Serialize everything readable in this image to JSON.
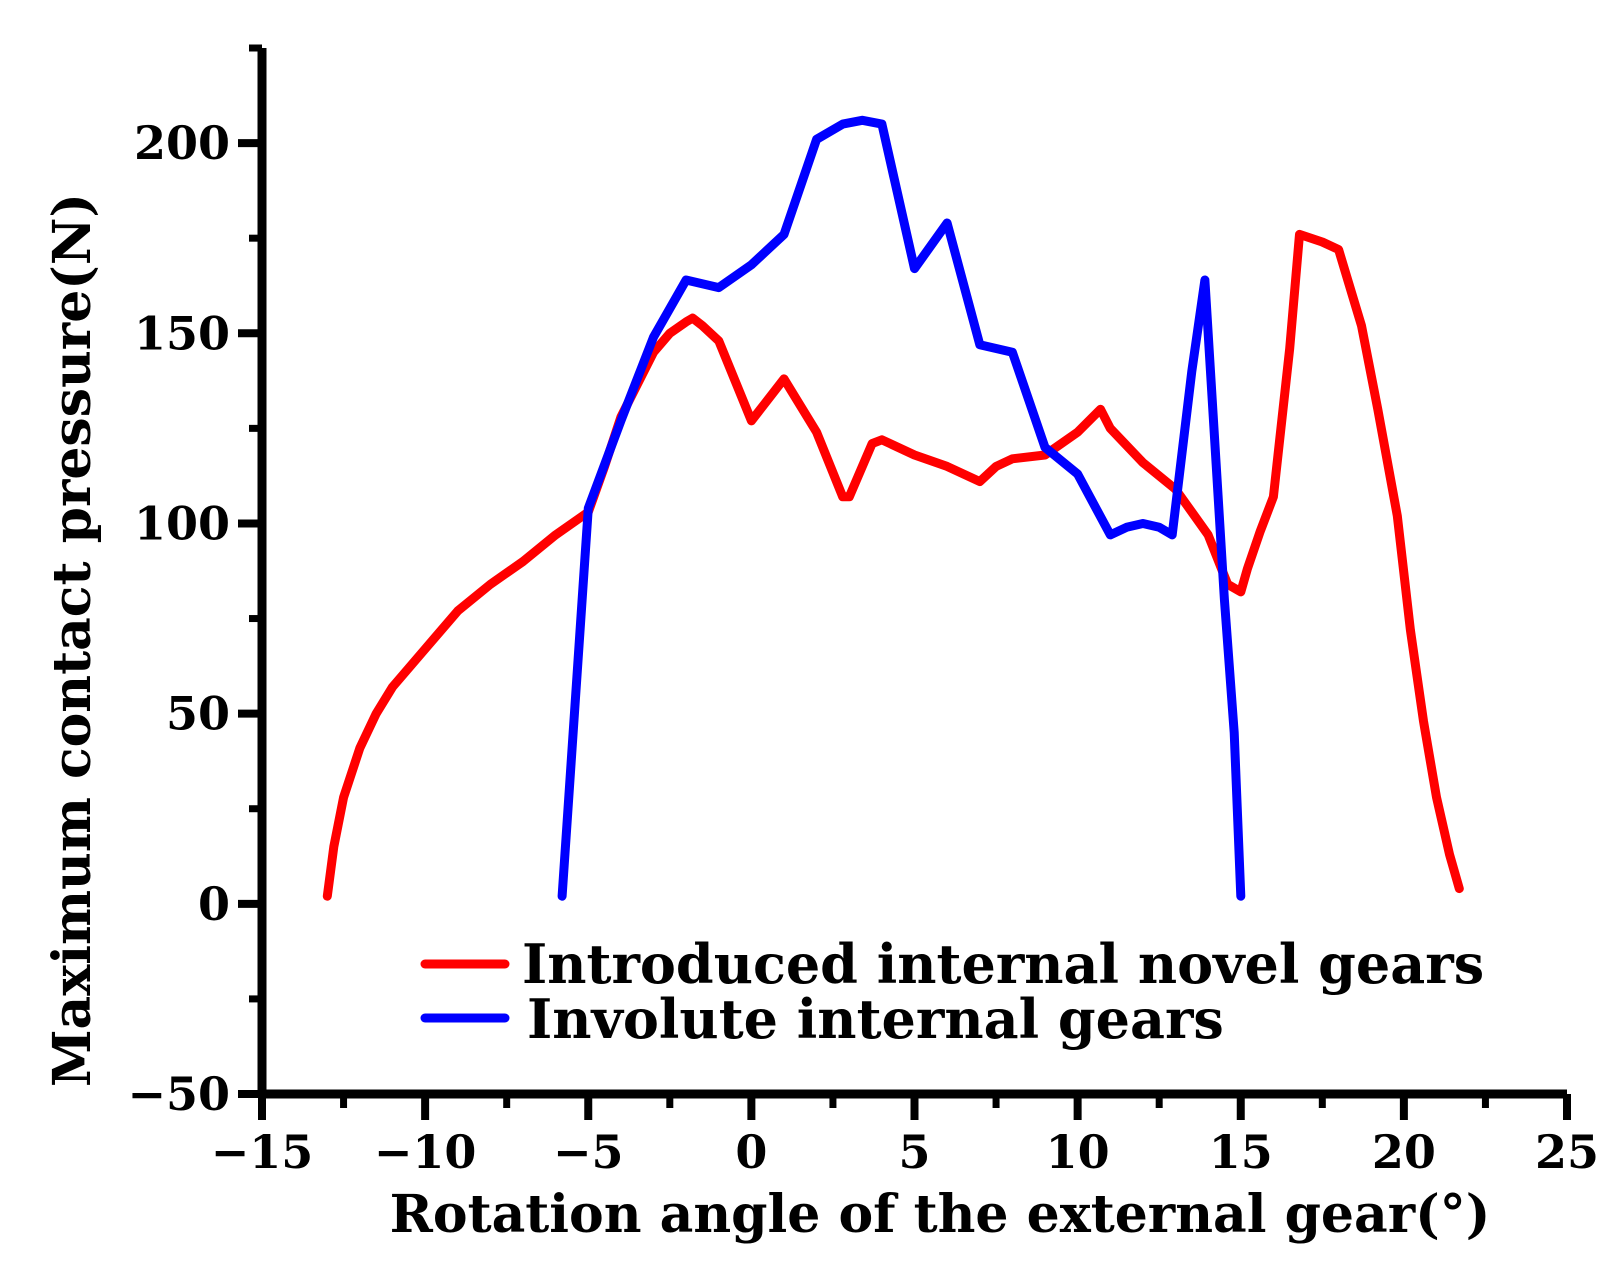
{
  "chart_data": {
    "type": "line",
    "xlabel": "Rotation angle of the external gear(°)",
    "ylabel": "Maximum contact pressure(N)",
    "xlim": [
      -15,
      25
    ],
    "ylim": [
      -50,
      225
    ],
    "x_ticks": [
      -15,
      -10,
      -5,
      0,
      5,
      10,
      15,
      20,
      25
    ],
    "x_tick_labels": [
      "−15",
      "−10",
      "−5",
      "0",
      "5",
      "10",
      "15",
      "20",
      "25"
    ],
    "y_ticks": [
      -50,
      0,
      50,
      100,
      150,
      200
    ],
    "y_tick_labels": [
      "−50",
      "0",
      "50",
      "100",
      "150",
      "200"
    ],
    "grid": false,
    "legend_position": "bottom-center",
    "series": [
      {
        "name": "Introduced internal novel gears",
        "color": "#ff0000",
        "points": [
          [
            -13.0,
            2
          ],
          [
            -12.8,
            15
          ],
          [
            -12.5,
            28
          ],
          [
            -12.0,
            41
          ],
          [
            -11.5,
            50
          ],
          [
            -11.0,
            57
          ],
          [
            -10.0,
            67
          ],
          [
            -9.0,
            77
          ],
          [
            -8.0,
            84
          ],
          [
            -7.0,
            90
          ],
          [
            -6.0,
            97
          ],
          [
            -5.0,
            103
          ],
          [
            -4.5,
            115
          ],
          [
            -4.0,
            128
          ],
          [
            -3.0,
            145
          ],
          [
            -2.5,
            150
          ],
          [
            -2.0,
            153
          ],
          [
            -1.8,
            154
          ],
          [
            -1.5,
            152
          ],
          [
            -1.0,
            148
          ],
          [
            0.0,
            127
          ],
          [
            1.0,
            138
          ],
          [
            2.0,
            124
          ],
          [
            2.8,
            107
          ],
          [
            3.0,
            107
          ],
          [
            3.7,
            121
          ],
          [
            4.0,
            122
          ],
          [
            5.0,
            118
          ],
          [
            6.0,
            115
          ],
          [
            7.0,
            111
          ],
          [
            7.5,
            115
          ],
          [
            8.0,
            117
          ],
          [
            9.0,
            118
          ],
          [
            10.0,
            124
          ],
          [
            10.7,
            130
          ],
          [
            11.0,
            125
          ],
          [
            12.0,
            116
          ],
          [
            13.0,
            109
          ],
          [
            13.5,
            103
          ],
          [
            14.0,
            97
          ],
          [
            14.6,
            84
          ],
          [
            15.0,
            82
          ],
          [
            15.2,
            88
          ],
          [
            15.6,
            98
          ],
          [
            16.0,
            107
          ],
          [
            16.5,
            146
          ],
          [
            16.8,
            176
          ],
          [
            17.5,
            174
          ],
          [
            18.0,
            172
          ],
          [
            18.7,
            152
          ],
          [
            19.2,
            130
          ],
          [
            19.8,
            102
          ],
          [
            20.2,
            72
          ],
          [
            20.6,
            48
          ],
          [
            21.0,
            28
          ],
          [
            21.4,
            13
          ],
          [
            21.7,
            4
          ]
        ]
      },
      {
        "name": "Involute internal gears",
        "color": "#0000ff",
        "points": [
          [
            -5.8,
            2
          ],
          [
            -5.0,
            104
          ],
          [
            -4.0,
            127
          ],
          [
            -3.0,
            149
          ],
          [
            -2.0,
            164
          ],
          [
            -1.0,
            162
          ],
          [
            0.0,
            168
          ],
          [
            1.0,
            176
          ],
          [
            2.0,
            201
          ],
          [
            2.8,
            205
          ],
          [
            3.4,
            206
          ],
          [
            4.0,
            205
          ],
          [
            5.0,
            167
          ],
          [
            6.0,
            179
          ],
          [
            7.0,
            147
          ],
          [
            8.0,
            145
          ],
          [
            9.0,
            120
          ],
          [
            10.0,
            113
          ],
          [
            11.0,
            97
          ],
          [
            11.5,
            99
          ],
          [
            12.0,
            100
          ],
          [
            12.5,
            99
          ],
          [
            12.9,
            97
          ],
          [
            13.5,
            140
          ],
          [
            13.9,
            164
          ],
          [
            14.5,
            80
          ],
          [
            14.8,
            45
          ],
          [
            15.0,
            2
          ]
        ]
      }
    ]
  }
}
